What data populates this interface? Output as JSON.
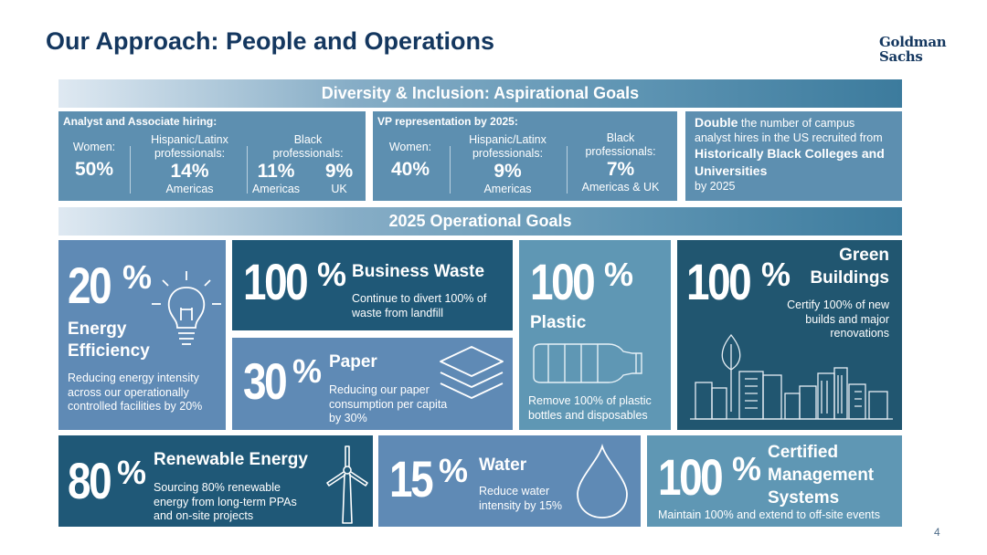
{
  "title": "Our Approach: People and Operations",
  "logo": {
    "line1": "Goldman",
    "line2": "Sachs"
  },
  "dni": {
    "bar_label": "Diversity & Inclusion: Aspirational Goals",
    "analyst": {
      "heading": "Analyst and Associate hiring:",
      "women_label": "Women:",
      "women_value": "50%",
      "hispanic_label": "Hispanic/Latinx professionals:",
      "hispanic_value": "14%",
      "hispanic_region": "Americas",
      "black_label": "Black professionals:",
      "black_americas_value": "11%",
      "black_americas_region": "Americas",
      "black_uk_value": "9%",
      "black_uk_region": "UK"
    },
    "vp": {
      "heading": "VP representation by 2025:",
      "women_label": "Women:",
      "women_value": "40%",
      "hispanic_label": "Hispanic/Latinx professionals:",
      "hispanic_value": "9%",
      "hispanic_region": "Americas",
      "black_label": "Black professionals:",
      "black_value": "7%",
      "black_region": "Americas & UK"
    },
    "double": {
      "bold1": "Double",
      "text1": " the number of campus analyst hires in the US recruited from ",
      "bold2": "Historically Black Colleges and Universities",
      "text2": "by 2025"
    }
  },
  "ops": {
    "bar_label": "2025 Operational Goals",
    "energy": {
      "value": "20",
      "unit": "%",
      "title_line1": "Energy",
      "title_line2": "Efficiency",
      "desc": "Reducing energy intensity across our operationally controlled facilities by 20%",
      "icon": "lightbulb-icon"
    },
    "waste": {
      "value": "100",
      "unit": "%",
      "title": "Business Waste",
      "desc": "Continue to divert 100% of waste from landfill"
    },
    "paper": {
      "value": "30",
      "unit": "%",
      "title": "Paper",
      "desc": "Reducing our paper consumption per capita by 30%",
      "icon": "paper-stack-icon"
    },
    "plastic": {
      "value": "100",
      "unit": "%",
      "title": "Plastic",
      "desc": "Remove 100% of plastic bottles and disposables",
      "icon": "bottle-icon"
    },
    "green": {
      "value": "100",
      "unit": "%",
      "title_line1": "Green",
      "title_line2": "Buildings",
      "desc": "Certify 100% of new builds and major renovations",
      "icon": "city-skyline-icon"
    },
    "renewable": {
      "value": "80",
      "unit": "%",
      "title": "Renewable Energy",
      "desc": "Sourcing 80% renewable energy from long-term PPAs and on-site projects",
      "icon": "wind-turbine-icon"
    },
    "water": {
      "value": "15",
      "unit": "%",
      "title": "Water",
      "desc": "Reduce water intensity by 15%",
      "icon": "water-drop-icon"
    },
    "certified": {
      "value": "100",
      "unit": "%",
      "title_line1": "Certified",
      "title_line2": "Management",
      "title_line3": "Systems",
      "desc": "Maintain 100% and extend to off-site events"
    }
  },
  "page_number": "4"
}
